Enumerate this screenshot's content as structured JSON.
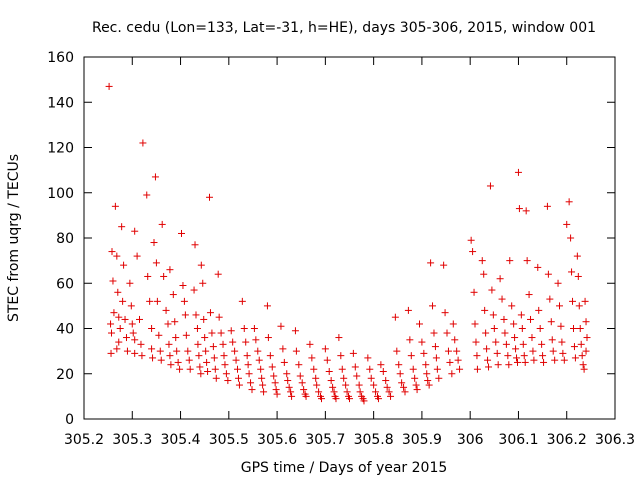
{
  "chart_data": {
    "type": "scatter",
    "title": "Rec. cedu (Lon=133, Lat=-31, h=HE), days 305-306, 2015, window 001",
    "xlabel": "GPS time / Days of year 2015",
    "ylabel": "STEC from uqrg / TECUs",
    "xlim": [
      305.2,
      306.3
    ],
    "ylim": [
      0,
      160
    ],
    "xticks": [
      "305.2",
      "305.3",
      "305.4",
      "305.5",
      "305.6",
      "305.7",
      "305.8",
      "305.9",
      "306",
      "306.1",
      "306.2",
      "306.3"
    ],
    "yticks": [
      "0",
      "20",
      "40",
      "60",
      "80",
      "100",
      "120",
      "140",
      "160"
    ],
    "grid": false,
    "marker": "+",
    "color": "#e00000",
    "points": [
      [
        305.252,
        147
      ],
      [
        305.258,
        74
      ],
      [
        305.26,
        61
      ],
      [
        305.262,
        47
      ],
      [
        305.255,
        42
      ],
      [
        305.257,
        38
      ],
      [
        305.256,
        29
      ],
      [
        305.265,
        94
      ],
      [
        305.268,
        72
      ],
      [
        305.27,
        56
      ],
      [
        305.272,
        45
      ],
      [
        305.275,
        40
      ],
      [
        305.272,
        34
      ],
      [
        305.268,
        31
      ],
      [
        305.278,
        85
      ],
      [
        305.282,
        68
      ],
      [
        305.28,
        52
      ],
      [
        305.285,
        44
      ],
      [
        305.288,
        36
      ],
      [
        305.29,
        30
      ],
      [
        305.295,
        60
      ],
      [
        305.298,
        50
      ],
      [
        305.3,
        42
      ],
      [
        305.302,
        38
      ],
      [
        305.305,
        35
      ],
      [
        305.305,
        29
      ],
      [
        305.305,
        83
      ],
      [
        305.31,
        72
      ],
      [
        305.315,
        44
      ],
      [
        305.318,
        33
      ],
      [
        305.32,
        28
      ],
      [
        305.322,
        122
      ],
      [
        305.33,
        99
      ],
      [
        305.332,
        63
      ],
      [
        305.336,
        52
      ],
      [
        305.34,
        40
      ],
      [
        305.34,
        31
      ],
      [
        305.342,
        27
      ],
      [
        305.348,
        107
      ],
      [
        305.345,
        78
      ],
      [
        305.35,
        69
      ],
      [
        305.352,
        52
      ],
      [
        305.355,
        37
      ],
      [
        305.358,
        30
      ],
      [
        305.36,
        26
      ],
      [
        305.362,
        86
      ],
      [
        305.365,
        63
      ],
      [
        305.37,
        48
      ],
      [
        305.374,
        42
      ],
      [
        305.376,
        33
      ],
      [
        305.378,
        28
      ],
      [
        305.38,
        24
      ],
      [
        305.378,
        66
      ],
      [
        305.385,
        55
      ],
      [
        305.388,
        43
      ],
      [
        305.39,
        36
      ],
      [
        305.392,
        30
      ],
      [
        305.395,
        25
      ],
      [
        305.398,
        22
      ],
      [
        305.402,
        82
      ],
      [
        305.405,
        59
      ],
      [
        305.408,
        52
      ],
      [
        305.41,
        46
      ],
      [
        305.412,
        37
      ],
      [
        305.415,
        30
      ],
      [
        305.418,
        26
      ],
      [
        305.42,
        22
      ],
      [
        305.43,
        77
      ],
      [
        305.428,
        57
      ],
      [
        305.432,
        46
      ],
      [
        305.435,
        40
      ],
      [
        305.436,
        33
      ],
      [
        305.438,
        28
      ],
      [
        305.44,
        23
      ],
      [
        305.442,
        20
      ],
      [
        305.443,
        68
      ],
      [
        305.446,
        60
      ],
      [
        305.448,
        44
      ],
      [
        305.45,
        36
      ],
      [
        305.452,
        30
      ],
      [
        305.454,
        25
      ],
      [
        305.456,
        21
      ],
      [
        305.46,
        98
      ],
      [
        305.462,
        47
      ],
      [
        305.465,
        38
      ],
      [
        305.468,
        32
      ],
      [
        305.47,
        27
      ],
      [
        305.472,
        22
      ],
      [
        305.474,
        18
      ],
      [
        305.478,
        64
      ],
      [
        305.48,
        45
      ],
      [
        305.484,
        38
      ],
      [
        305.488,
        33
      ],
      [
        305.49,
        28
      ],
      [
        305.492,
        24
      ],
      [
        305.495,
        20
      ],
      [
        305.498,
        17
      ],
      [
        305.505,
        39
      ],
      [
        305.508,
        34
      ],
      [
        305.512,
        30
      ],
      [
        305.515,
        26
      ],
      [
        305.518,
        22
      ],
      [
        305.52,
        18
      ],
      [
        305.522,
        15
      ],
      [
        305.528,
        52
      ],
      [
        305.532,
        40
      ],
      [
        305.535,
        34
      ],
      [
        305.538,
        28
      ],
      [
        305.54,
        24
      ],
      [
        305.542,
        20
      ],
      [
        305.545,
        16
      ],
      [
        305.548,
        13
      ],
      [
        305.553,
        40
      ],
      [
        305.556,
        35
      ],
      [
        305.56,
        30
      ],
      [
        305.563,
        26
      ],
      [
        305.566,
        22
      ],
      [
        305.568,
        18
      ],
      [
        305.57,
        15
      ],
      [
        305.572,
        12
      ],
      [
        305.58,
        50
      ],
      [
        305.582,
        36
      ],
      [
        305.586,
        28
      ],
      [
        305.59,
        23
      ],
      [
        305.593,
        19
      ],
      [
        305.596,
        16
      ],
      [
        305.598,
        13
      ],
      [
        305.6,
        11
      ],
      [
        305.608,
        41
      ],
      [
        305.612,
        31
      ],
      [
        305.615,
        25
      ],
      [
        305.62,
        20
      ],
      [
        305.622,
        17
      ],
      [
        305.625,
        14
      ],
      [
        305.628,
        12
      ],
      [
        305.63,
        10
      ],
      [
        305.638,
        39
      ],
      [
        305.64,
        30
      ],
      [
        305.645,
        24
      ],
      [
        305.648,
        19
      ],
      [
        305.652,
        16
      ],
      [
        305.655,
        13
      ],
      [
        305.658,
        11
      ],
      [
        305.66,
        10
      ],
      [
        305.668,
        33
      ],
      [
        305.672,
        27
      ],
      [
        305.676,
        22
      ],
      [
        305.68,
        18
      ],
      [
        305.682,
        15
      ],
      [
        305.686,
        12
      ],
      [
        305.69,
        10
      ],
      [
        305.692,
        9
      ],
      [
        305.7,
        31
      ],
      [
        305.704,
        26
      ],
      [
        305.708,
        21
      ],
      [
        305.712,
        17
      ],
      [
        305.715,
        14
      ],
      [
        305.718,
        12
      ],
      [
        305.72,
        10
      ],
      [
        305.722,
        9
      ],
      [
        305.728,
        36
      ],
      [
        305.732,
        28
      ],
      [
        305.735,
        22
      ],
      [
        305.738,
        18
      ],
      [
        305.742,
        15
      ],
      [
        305.745,
        12
      ],
      [
        305.748,
        10
      ],
      [
        305.75,
        9
      ],
      [
        305.758,
        29
      ],
      [
        305.762,
        23
      ],
      [
        305.765,
        19
      ],
      [
        305.77,
        15
      ],
      [
        305.772,
        12
      ],
      [
        305.775,
        10
      ],
      [
        305.778,
        9
      ],
      [
        305.78,
        8
      ],
      [
        305.788,
        27
      ],
      [
        305.792,
        22
      ],
      [
        305.795,
        18
      ],
      [
        305.8,
        15
      ],
      [
        305.804,
        12
      ],
      [
        305.808,
        10
      ],
      [
        305.81,
        9
      ],
      [
        305.815,
        24
      ],
      [
        305.82,
        21
      ],
      [
        305.825,
        17
      ],
      [
        305.828,
        14
      ],
      [
        305.832,
        12
      ],
      [
        305.835,
        10
      ],
      [
        305.845,
        45
      ],
      [
        305.848,
        30
      ],
      [
        305.852,
        24
      ],
      [
        305.855,
        20
      ],
      [
        305.858,
        16
      ],
      [
        305.862,
        14
      ],
      [
        305.865,
        12
      ],
      [
        305.872,
        48
      ],
      [
        305.875,
        35
      ],
      [
        305.878,
        28
      ],
      [
        305.882,
        22
      ],
      [
        305.885,
        18
      ],
      [
        305.888,
        15
      ],
      [
        305.89,
        13
      ],
      [
        305.895,
        42
      ],
      [
        305.9,
        34
      ],
      [
        305.904,
        29
      ],
      [
        305.908,
        24
      ],
      [
        305.91,
        20
      ],
      [
        305.912,
        17
      ],
      [
        305.915,
        15
      ],
      [
        305.918,
        69
      ],
      [
        305.922,
        50
      ],
      [
        305.925,
        38
      ],
      [
        305.928,
        32
      ],
      [
        305.93,
        27
      ],
      [
        305.932,
        22
      ],
      [
        305.935,
        18
      ],
      [
        305.945,
        68
      ],
      [
        305.948,
        47
      ],
      [
        305.952,
        38
      ],
      [
        305.955,
        30
      ],
      [
        305.958,
        25
      ],
      [
        305.962,
        20
      ],
      [
        305.965,
        42
      ],
      [
        305.968,
        35
      ],
      [
        305.972,
        30
      ],
      [
        305.975,
        26
      ],
      [
        305.978,
        22
      ],
      [
        306.002,
        79
      ],
      [
        306.005,
        74
      ],
      [
        306.008,
        56
      ],
      [
        306.01,
        42
      ],
      [
        306.012,
        34
      ],
      [
        306.014,
        28
      ],
      [
        306.015,
        22
      ],
      [
        306.025,
        70
      ],
      [
        306.028,
        64
      ],
      [
        306.03,
        48
      ],
      [
        306.032,
        38
      ],
      [
        306.034,
        31
      ],
      [
        306.036,
        26
      ],
      [
        306.038,
        23
      ],
      [
        306.042,
        103
      ],
      [
        306.045,
        57
      ],
      [
        306.048,
        46
      ],
      [
        306.05,
        40
      ],
      [
        306.053,
        34
      ],
      [
        306.056,
        29
      ],
      [
        306.058,
        24
      ],
      [
        306.062,
        62
      ],
      [
        306.066,
        53
      ],
      [
        306.07,
        44
      ],
      [
        306.072,
        38
      ],
      [
        306.075,
        33
      ],
      [
        306.078,
        28
      ],
      [
        306.08,
        24
      ],
      [
        306.082,
        70
      ],
      [
        306.086,
        50
      ],
      [
        306.09,
        42
      ],
      [
        306.092,
        36
      ],
      [
        306.094,
        31
      ],
      [
        306.096,
        27
      ],
      [
        306.098,
        25
      ],
      [
        306.1,
        109
      ],
      [
        306.102,
        93
      ],
      [
        306.106,
        46
      ],
      [
        306.108,
        40
      ],
      [
        306.11,
        33
      ],
      [
        306.112,
        28
      ],
      [
        306.114,
        25
      ],
      [
        306.116,
        92
      ],
      [
        306.118,
        70
      ],
      [
        306.122,
        55
      ],
      [
        306.125,
        44
      ],
      [
        306.128,
        36
      ],
      [
        306.13,
        30
      ],
      [
        306.132,
        26
      ],
      [
        306.14,
        67
      ],
      [
        306.142,
        48
      ],
      [
        306.145,
        40
      ],
      [
        306.148,
        33
      ],
      [
        306.15,
        28
      ],
      [
        306.152,
        25
      ],
      [
        306.16,
        94
      ],
      [
        306.162,
        64
      ],
      [
        306.165,
        53
      ],
      [
        306.168,
        43
      ],
      [
        306.17,
        35
      ],
      [
        306.172,
        30
      ],
      [
        306.175,
        26
      ],
      [
        306.182,
        60
      ],
      [
        306.185,
        50
      ],
      [
        306.188,
        41
      ],
      [
        306.19,
        34
      ],
      [
        306.192,
        29
      ],
      [
        306.195,
        26
      ],
      [
        306.2,
        86
      ],
      [
        306.205,
        96
      ],
      [
        306.208,
        80
      ],
      [
        306.21,
        65
      ],
      [
        306.212,
        52
      ],
      [
        306.214,
        40
      ],
      [
        306.216,
        32
      ],
      [
        306.218,
        27
      ],
      [
        306.222,
        72
      ],
      [
        306.224,
        63
      ],
      [
        306.226,
        50
      ],
      [
        306.228,
        40
      ],
      [
        306.23,
        33
      ],
      [
        306.232,
        28
      ],
      [
        306.234,
        24
      ],
      [
        306.236,
        22
      ],
      [
        306.238,
        52
      ],
      [
        306.24,
        43
      ],
      [
        306.242,
        36
      ],
      [
        306.24,
        30
      ]
    ]
  }
}
